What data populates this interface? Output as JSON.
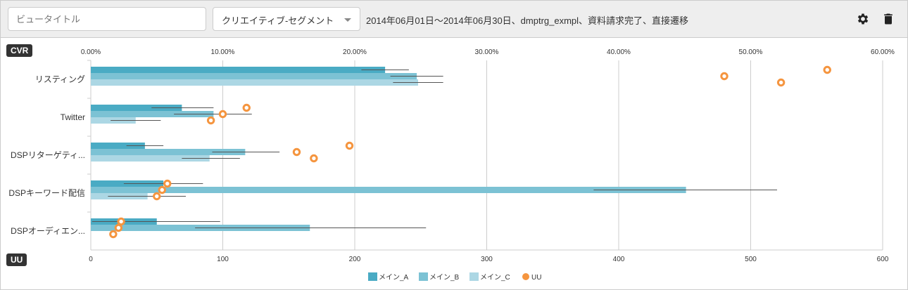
{
  "toolbar": {
    "view_title_placeholder": "ビュータイトル",
    "segment_select": "クリエイティブ-セグメント",
    "summary": "2014年06月01日～2014年06月30日、dmptrg_exmpl、資料請求完了、直接遷移",
    "settings_icon": "gear-icon",
    "delete_icon": "trash-icon"
  },
  "chart_data": {
    "type": "bar",
    "orientation": "horizontal",
    "top_axis_label": "CVR",
    "bottom_axis_label": "UU",
    "cvr_ticks": [
      "0.00%",
      "10.00%",
      "20.00%",
      "30.00%",
      "40.00%",
      "50.00%",
      "60.00%"
    ],
    "cvr_range": [
      0,
      60
    ],
    "uu_ticks": [
      "0",
      "100",
      "200",
      "300",
      "400",
      "500",
      "600"
    ],
    "uu_range": [
      0,
      600
    ],
    "categories": [
      "リスティング",
      "Twitter",
      "DSPリターゲティ...",
      "DSPキーワード配信",
      "DSPオーディエン..."
    ],
    "series": [
      {
        "name": "メイン_A",
        "color": "#4aabc4",
        "cvr": [
          22.3,
          6.9,
          4.1,
          5.5,
          5.0
        ],
        "err": [
          [
            20.5,
            24.1
          ],
          [
            4.6,
            9.3
          ],
          [
            2.7,
            5.5
          ],
          [
            2.5,
            8.5
          ],
          [
            0.1,
            9.8
          ]
        ],
        "uu": [
          558,
          118,
          196,
          58,
          23
        ]
      },
      {
        "name": "メイン_B",
        "color": "#7cc2d4",
        "cvr": [
          24.7,
          9.3,
          11.7,
          45.1,
          16.6
        ],
        "err": [
          [
            22.7,
            26.7
          ],
          [
            6.3,
            12.2
          ],
          [
            9.2,
            14.3
          ],
          [
            38.1,
            52.0
          ],
          [
            7.9,
            25.4
          ]
        ],
        "uu": [
          480,
          100,
          156,
          54,
          21
        ]
      },
      {
        "name": "メイン_C",
        "color": "#acd7e4",
        "cvr": [
          24.8,
          3.4,
          9.0,
          4.3,
          0
        ],
        "err": [
          [
            22.9,
            26.7
          ],
          [
            1.5,
            5.3
          ],
          [
            6.9,
            11.3
          ],
          [
            1.3,
            7.2
          ],
          null
        ],
        "uu": [
          523,
          91,
          169,
          50,
          17
        ]
      }
    ],
    "uu_legend": {
      "name": "UU",
      "color": "#f5953f"
    },
    "grid": true,
    "legend_position": "bottom"
  }
}
